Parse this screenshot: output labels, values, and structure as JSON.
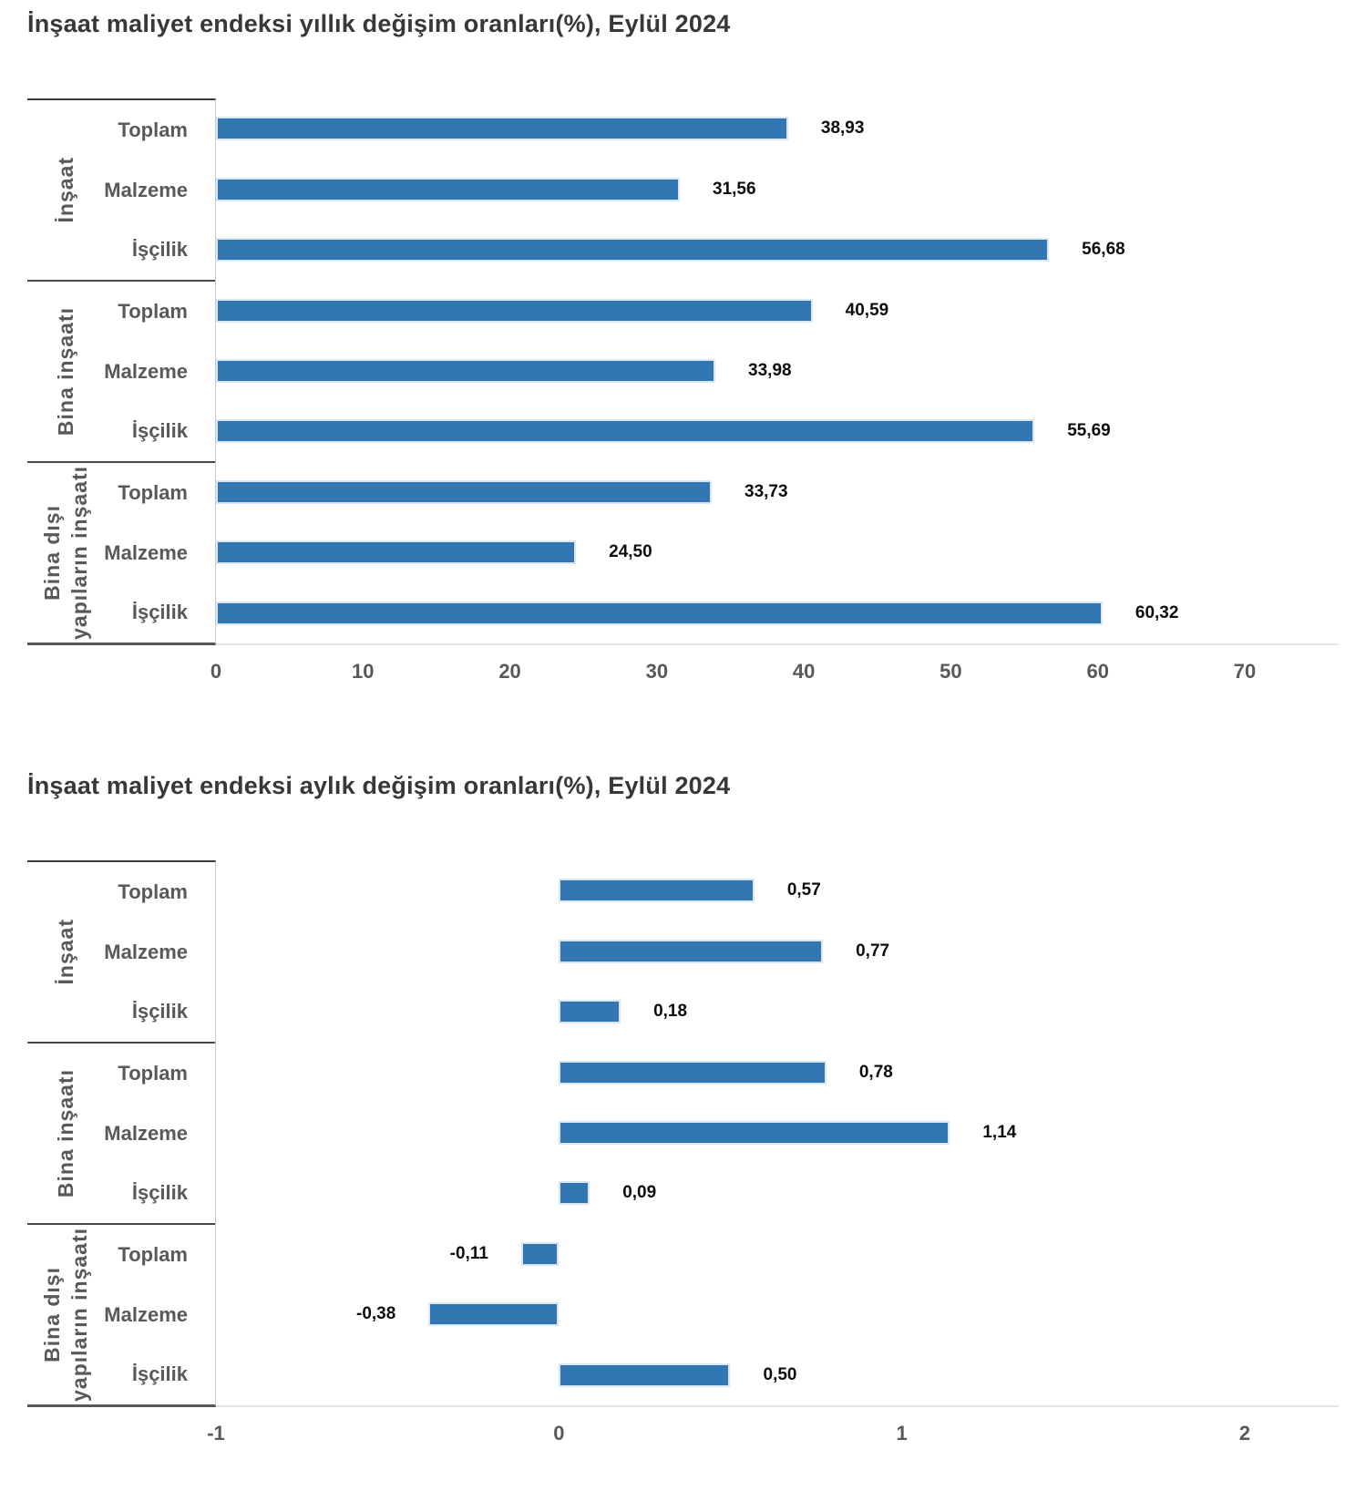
{
  "page": {
    "background": "#ffffff"
  },
  "colors": {
    "bar": "#3377B2",
    "bar_border": "#D9E7F4",
    "title_text": "#383838",
    "label_text": "#595959",
    "value_text": "#0D0D0D",
    "box_line": "#4A4A4A",
    "axis_line": "#E3E3E3"
  },
  "charts": [
    {
      "title": "İnşaat maliyet endeksi yıllık değişim oranları(%), Eylül 2024",
      "chart_data": {
        "type": "bar",
        "orientation": "horizontal",
        "grid": false,
        "legend": "none",
        "xlim": [
          0,
          70
        ],
        "xticks": [
          0,
          10,
          20,
          30,
          40,
          50,
          60,
          70
        ],
        "xtick_labels": [
          "0",
          "10",
          "20",
          "30",
          "40",
          "50",
          "60",
          "70"
        ],
        "groups": [
          {
            "label": "İnşaat",
            "label_lines": [
              "İnşaat"
            ],
            "categories": [
              "Toplam",
              "Malzeme",
              "İşçilik"
            ],
            "values": [
              38.93,
              31.56,
              56.68
            ],
            "value_labels": [
              "38,93",
              "31,56",
              "56,68"
            ]
          },
          {
            "label": "Bina inşaatı",
            "label_lines": [
              "Bina inşaatı"
            ],
            "categories": [
              "Toplam",
              "Malzeme",
              "İşçilik"
            ],
            "values": [
              40.59,
              33.98,
              55.69
            ],
            "value_labels": [
              "40,59",
              "33,98",
              "55,69"
            ]
          },
          {
            "label": "Bina dışı yapıların inşaatı",
            "label_lines": [
              "Bina dışı",
              "yapıların inşaatı"
            ],
            "categories": [
              "Toplam",
              "Malzeme",
              "İşçilik"
            ],
            "values": [
              33.73,
              24.5,
              60.32
            ],
            "value_labels": [
              "33,73",
              "24,50",
              "60,32"
            ]
          }
        ]
      }
    },
    {
      "title": "İnşaat maliyet endeksi aylık değişim oranları(%), Eylül 2024",
      "chart_data": {
        "type": "bar",
        "orientation": "horizontal",
        "grid": false,
        "legend": "none",
        "xlim": [
          -1,
          2
        ],
        "xticks": [
          -1,
          0,
          1,
          2
        ],
        "xtick_labels": [
          "-1",
          "0",
          "1",
          "2"
        ],
        "groups": [
          {
            "label": "İnşaat",
            "label_lines": [
              "İnşaat"
            ],
            "categories": [
              "Toplam",
              "Malzeme",
              "İşçilik"
            ],
            "values": [
              0.57,
              0.77,
              0.18
            ],
            "value_labels": [
              "0,57",
              "0,77",
              "0,18"
            ]
          },
          {
            "label": "Bina inşaatı",
            "label_lines": [
              "Bina inşaatı"
            ],
            "categories": [
              "Toplam",
              "Malzeme",
              "İşçilik"
            ],
            "values": [
              0.78,
              1.14,
              0.09
            ],
            "value_labels": [
              "0,78",
              "1,14",
              "0,09"
            ]
          },
          {
            "label": "Bina dışı yapıların inşaatı",
            "label_lines": [
              "Bina dışı",
              "yapıların inşaatı"
            ],
            "categories": [
              "Toplam",
              "Malzeme",
              "İşçilik"
            ],
            "values": [
              -0.11,
              -0.38,
              0.5
            ],
            "value_labels": [
              "-0,11",
              "-0,38",
              "0,50"
            ]
          }
        ]
      }
    }
  ]
}
